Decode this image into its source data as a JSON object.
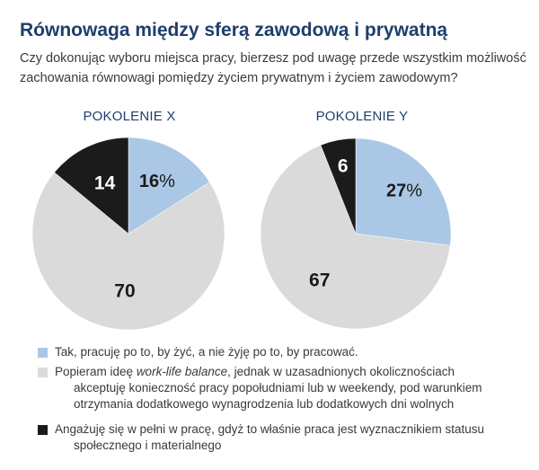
{
  "title": "Równowaga między sferą zawodową i prywatną",
  "question_lines": [
    "Czy dokonując wyboru miejsca pracy, bierzesz pod uwagę przede wszystkim możliwość",
    "zachowania równowagi pomiędzy życiem prywatnym i życiem zawodowym?"
  ],
  "colors": {
    "answer_1": "#aac8e6",
    "answer_2": "#dadada",
    "answer_3": "#1b1b1b",
    "title": "#1e3f6b"
  },
  "legend": [
    {
      "lines": [
        "Tak, pracuję po to, by żyć, a nie żyję po to, by pracować."
      ]
    },
    {
      "lines": [
        "Popieram ideę work-life balance, jednak w uzasadnionych okolicznościach",
        "akceptuję konieczność pracy popołudniami lub w weekendy, pod warunkiem",
        "otrzymania dodatkowego wynagrodzenia lub dodatkowych dni wolnych"
      ],
      "italic_phrase": "work-life balance"
    },
    {
      "lines": [
        "Angażuję się w pełni w pracę, gdyż to właśnie praca jest wyznacznikiem statusu",
        "społecznego i materialnego"
      ]
    }
  ],
  "chart_data": [
    {
      "type": "pie",
      "title": "POKOLENIE X",
      "categories": [
        "Tak, pracuję po to, by żyć, a nie żyję po to, by pracować.",
        "Popieram ideę work-life balance, jednak w uzasadnionych okolicznościach akceptuję konieczność pracy popołudniami lub w weekendy, pod warunkiem otrzymania dodatkowego wynagrodzenia lub dodatkowych dni wolnych",
        "Angażuję się w pełni w pracę, gdyż to właśnie praca jest wyznacznikiem statusu społecznego i materialnego"
      ],
      "values": [
        16,
        70,
        14
      ],
      "labels": [
        "16%",
        "70",
        "14"
      ],
      "legend_position": "bottom"
    },
    {
      "type": "pie",
      "title": "POKOLENIE Y",
      "categories": [
        "Tak, pracuję po to, by żyć, a nie żyję po to, by pracować.",
        "Popieram ideę work-life balance, jednak w uzasadnionych okolicznościach akceptuję konieczność pracy popołudniami lub w weekendy, pod warunkiem otrzymania dodatkowego wynagrodzenia lub dodatkowych dni wolnych",
        "Angażuję się w pełni w pracę, gdyż to właśnie praca jest wyznacznikiem statusu społecznego i materialnego"
      ],
      "values": [
        27,
        67,
        6
      ],
      "labels": [
        "27%",
        "67",
        "6"
      ],
      "legend_position": "bottom"
    }
  ]
}
